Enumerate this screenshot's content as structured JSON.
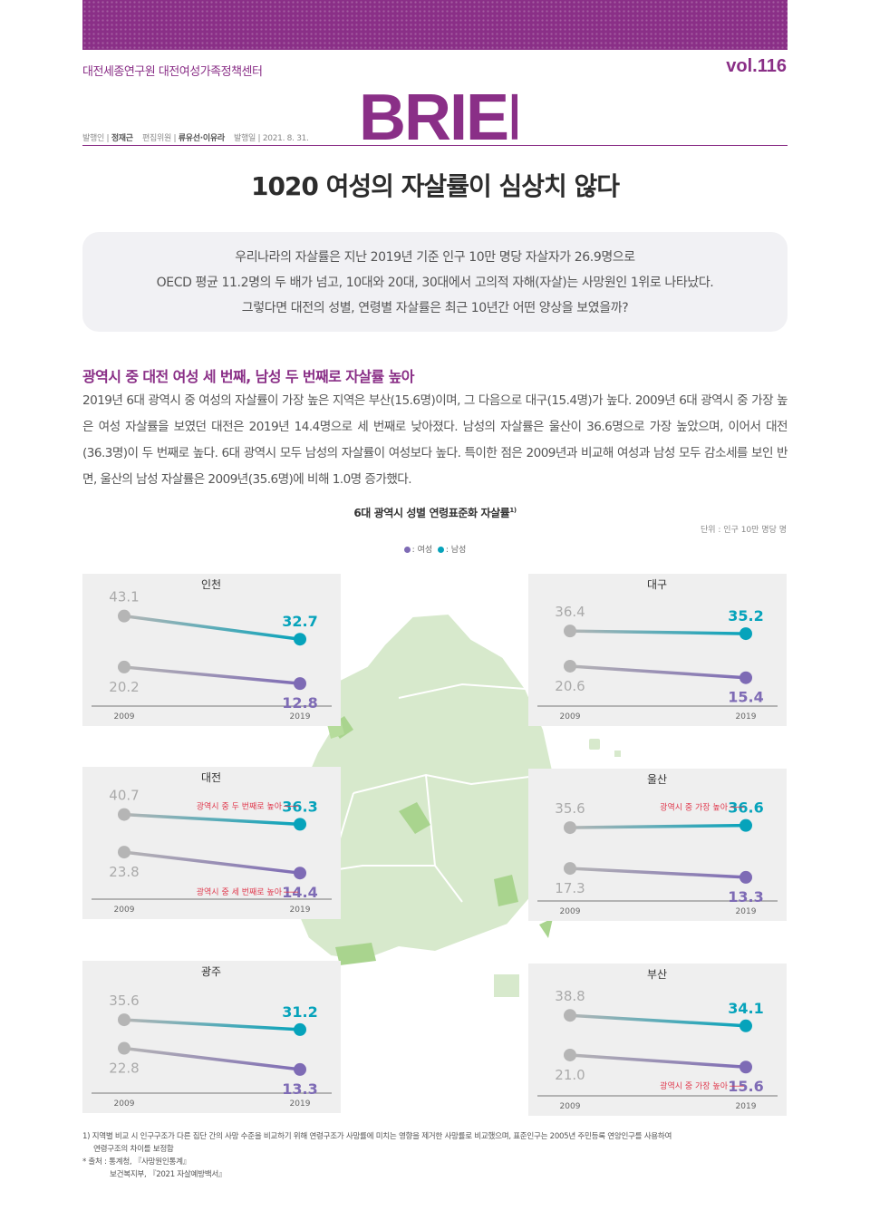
{
  "header": {
    "org": "대전세종연구원 대전여성가족정책센터",
    "volume": "vol.116",
    "logo_text": "BRIEF",
    "meta": {
      "publisher_label": "발행인",
      "publisher": "정재근",
      "editors_label": "편집위원",
      "editors": "류유선·이유라",
      "date_label": "발행일",
      "date": "2021. 8. 31."
    }
  },
  "title": "1020 여성의 자살률이 심상치 않다",
  "summary": [
    "우리나라의 자살률은 지난 2019년 기준 인구 10만 명당 자살자가 26.9명으로",
    "OECD 평균 11.2명의 두 배가 넘고, 10대와 20대, 30대에서 고의적 자해(자살)는 사망원인 1위로 나타났다.",
    "그렇다면 대전의 성별, 연령별 자살률은 최근 10년간 어떤 양상을 보였을까?"
  ],
  "section": {
    "heading": "광역시 중 대전 여성 세 번째, 남성 두 번째로 자살률 높아",
    "body": "2019년 6대 광역시 중 여성의 자살률이 가장 높은 지역은 부산(15.6명)이며, 그 다음으로 대구(15.4명)가 높다. 2009년 6대 광역시 중 가장 높은 여성 자살률을 보였던 대전은 2019년 14.4명으로 세 번째로 낮아졌다. 남성의 자살률은 울산이 36.6명으로 가장 높았으며, 이어서 대전(36.3명)이 두 번째로 높다. 6대 광역시 모두 남성의 자살률이 여성보다 높다. 특이한 점은 2009년과 비교해 여성과 남성 모두 감소세를 보인 반면, 울산의 남성 자살률은 2009년(35.6명)에 비해 1.0명 증가했다."
  },
  "chart_data": {
    "type": "line",
    "title": "6대 광역시 성별 연령표준화 자살률",
    "title_sup": "1)",
    "unit": "단위 : 인구 10만 명당 명",
    "legend": [
      "여성",
      "남성"
    ],
    "x": [
      "2009",
      "2019"
    ],
    "colors": {
      "female": "#7e6bb5",
      "male": "#06a3bb",
      "grey": "#b5b5b5",
      "note": "#e03a4e"
    },
    "cities": [
      {
        "name": "인천",
        "female": [
          20.2,
          12.8
        ],
        "male": [
          43.1,
          32.7
        ],
        "labels": {
          "f09": "20.2",
          "f19": "12.8",
          "m09": "43.1",
          "m19": "32.7"
        },
        "note_f": "",
        "note_m": ""
      },
      {
        "name": "대구",
        "female": [
          20.6,
          15.4
        ],
        "male": [
          36.4,
          35.2
        ],
        "labels": {
          "f09": "20.6",
          "f19": "15.4",
          "m09": "36.4",
          "m19": "35.2"
        },
        "note_f": "",
        "note_m": ""
      },
      {
        "name": "대전",
        "female": [
          23.8,
          14.4
        ],
        "male": [
          40.7,
          36.3
        ],
        "labels": {
          "f09": "23.8",
          "f19": "14.4",
          "m09": "40.7",
          "m19": "36.3"
        },
        "note_f": "광역시 중 세 번째로 높아",
        "note_m": "광역시 중 두 번째로 높아"
      },
      {
        "name": "울산",
        "female": [
          17.3,
          13.3
        ],
        "male": [
          35.6,
          36.6
        ],
        "labels": {
          "f09": "17.3",
          "f19": "13.3",
          "m09": "35.6",
          "m19": "36.6"
        },
        "note_f": "",
        "note_m": "광역시 중 가장 높아"
      },
      {
        "name": "광주",
        "female": [
          22.8,
          13.3
        ],
        "male": [
          35.6,
          31.2
        ],
        "labels": {
          "f09": "22.8",
          "f19": "13.3",
          "m09": "35.6",
          "m19": "31.2"
        },
        "note_f": "",
        "note_m": ""
      },
      {
        "name": "부산",
        "female": [
          21.0,
          15.6
        ],
        "male": [
          38.8,
          34.1
        ],
        "labels": {
          "f09": "21.0",
          "f19": "15.6",
          "m09": "38.8",
          "m19": "34.1"
        },
        "note_f": "광역시 중 가장 높아",
        "note_m": ""
      }
    ]
  },
  "footnotes": {
    "note1": "1) 지역별 비교 시 인구구조가 다른 집단 간의 사망 수준을 비교하기 위해 연령구조가 사망률에 미치는 영향을 제거한 사망률로 비교했으며, 표준인구는 2005년 주민등록 연앙인구를 사용하여",
    "note1b": "연령구조의 차이를 보정함",
    "source1": "* 출처 : 통계청, 『사망원인통계』",
    "source2": "보건복지부, 『2021 자살예방백서』"
  }
}
